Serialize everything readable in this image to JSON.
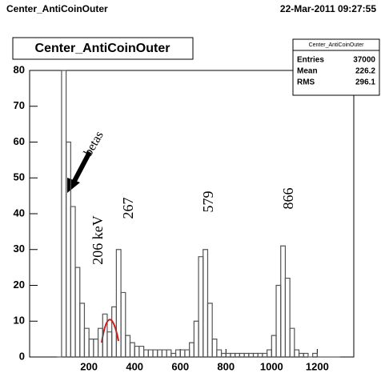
{
  "chart_data": {
    "type": "histogram",
    "header_left": "Center_AntiCoinOuter",
    "header_right": "22-Mar-2011 09:27:55",
    "title": "Center_AntiCoinOuter",
    "stats": {
      "title": "Center_AntiCoinOuter",
      "rows": [
        {
          "label": "Entries",
          "value": 37000
        },
        {
          "label": "Mean",
          "value": 226.2
        },
        {
          "label": "RMS",
          "value": 296.1
        }
      ]
    },
    "bins": [
      60,
      80,
      100,
      120,
      140,
      160,
      180,
      200,
      220,
      240,
      260,
      280,
      300,
      320,
      340,
      360,
      380,
      400,
      420,
      440,
      460,
      480,
      500,
      520,
      540,
      560,
      580,
      600,
      620,
      640,
      660,
      680,
      700,
      720,
      740,
      760,
      780,
      800,
      820,
      840,
      860,
      880,
      900,
      920,
      940,
      960,
      980,
      1000,
      1020,
      1040,
      1060,
      1080,
      1100,
      1120,
      1140,
      1160,
      1180,
      1200,
      1220,
      1240,
      1260,
      1280,
      1300
    ],
    "counts": [
      0,
      80,
      60,
      42,
      25,
      15,
      8,
      5,
      5,
      8,
      12,
      7,
      14,
      30,
      18,
      6,
      4,
      3,
      3,
      2,
      2,
      2,
      2,
      2,
      2,
      1,
      2,
      2,
      2,
      4,
      10,
      28,
      30,
      15,
      5,
      2,
      1,
      1,
      1,
      1,
      1,
      1,
      1,
      1,
      1,
      1,
      2,
      6,
      20,
      31,
      22,
      8,
      2,
      1,
      1,
      0,
      1,
      0,
      0,
      0,
      0,
      0
    ],
    "color": "#555555",
    "xlim": [
      -60,
      1360
    ],
    "ylim": [
      0,
      80
    ],
    "xticks": [
      200,
      400,
      600,
      800,
      1000,
      1200
    ],
    "yticks": [
      0,
      10,
      20,
      30,
      40,
      50,
      60,
      70,
      80
    ],
    "annotations": [
      "betas",
      "206 keV",
      "267",
      "579",
      "866"
    ]
  }
}
